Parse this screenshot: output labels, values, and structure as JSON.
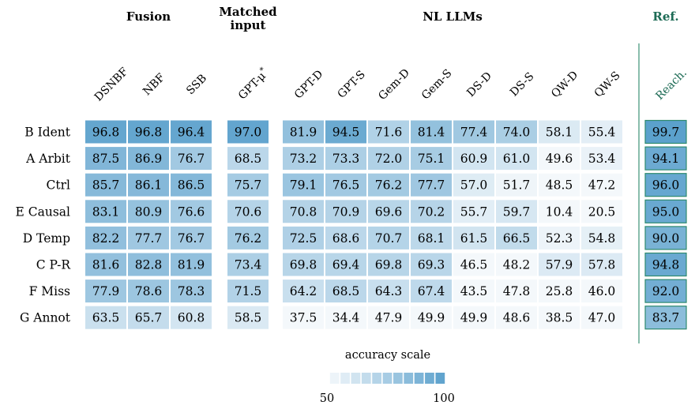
{
  "groups": [
    {
      "label": "Fusion",
      "columns": [
        0,
        1,
        2
      ]
    },
    {
      "label": "Matched\ninput",
      "columns": [
        3
      ]
    },
    {
      "label": "NL LLMs",
      "columns": [
        4,
        5,
        6,
        7,
        8,
        9,
        10,
        11
      ]
    },
    {
      "label": "Ref.",
      "columns": [
        12
      ]
    }
  ],
  "chart_data": {
    "type": "heatmap",
    "columns": [
      "DSNBF",
      "NBF",
      "SSB",
      "GPT-μ*",
      "GPT-D",
      "GPT-S",
      "Gem-D",
      "Gem-S",
      "DS-D",
      "DS-S",
      "QW-D",
      "QW-S",
      "Reach."
    ],
    "rows": [
      "B Ident",
      "A Arbit",
      "Ctrl",
      "E Causal",
      "D Temp",
      "C P-R",
      "F Miss",
      "G Annot"
    ],
    "values": [
      [
        96.8,
        96.8,
        96.4,
        97.0,
        81.9,
        94.5,
        71.6,
        81.4,
        77.4,
        74.0,
        58.1,
        55.4,
        99.7
      ],
      [
        87.5,
        86.9,
        76.7,
        68.5,
        73.2,
        73.3,
        72.0,
        75.1,
        60.9,
        61.0,
        49.6,
        53.4,
        94.1
      ],
      [
        85.7,
        86.1,
        86.5,
        75.7,
        79.1,
        76.5,
        76.2,
        77.7,
        57.0,
        51.7,
        48.5,
        47.2,
        96.0
      ],
      [
        83.1,
        80.9,
        76.6,
        70.6,
        70.8,
        70.9,
        69.6,
        70.2,
        55.7,
        59.7,
        10.4,
        20.5,
        95.0
      ],
      [
        82.2,
        77.7,
        76.7,
        76.2,
        72.5,
        68.6,
        70.7,
        68.1,
        61.5,
        66.5,
        52.3,
        54.8,
        90.0
      ],
      [
        81.6,
        82.8,
        81.9,
        73.4,
        69.8,
        69.4,
        69.8,
        69.3,
        46.5,
        48.2,
        57.9,
        57.8,
        94.8
      ],
      [
        77.9,
        78.6,
        78.3,
        71.5,
        64.2,
        68.5,
        64.3,
        67.4,
        43.5,
        47.8,
        25.8,
        46.0,
        92.0
      ],
      [
        63.5,
        65.7,
        60.8,
        58.5,
        37.5,
        34.4,
        47.9,
        49.9,
        49.9,
        48.6,
        38.5,
        47.0,
        83.7
      ]
    ],
    "color_scale": {
      "title": "accuracy scale",
      "min": 50,
      "max": 100,
      "tick_labels": [
        "50",
        "100"
      ],
      "low_color": "#f4f8fb",
      "high_color": "#5aa0cc"
    },
    "highlight_column": "Reach.",
    "highlight_border_color": "#2e8a6e"
  }
}
